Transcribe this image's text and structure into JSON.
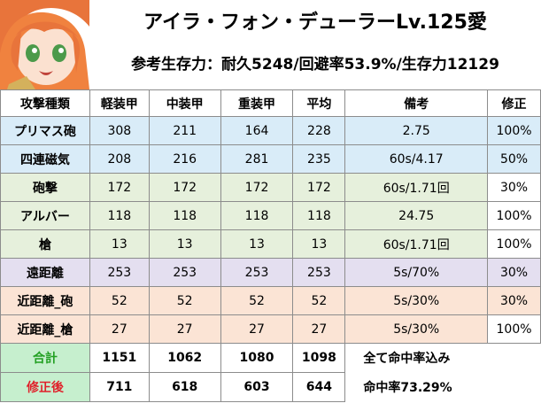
{
  "header": {
    "title": "アイラ・フォン・デューラーLv.125愛",
    "subtitle": "参考生存力：耐久5248/回避率53.9%/生存力12129"
  },
  "columns": [
    "攻撃種類",
    "軽装甲",
    "中装甲",
    "重装甲",
    "平均",
    "備考",
    "修正"
  ],
  "rows": [
    {
      "label": "プリマス砲",
      "light": "308",
      "medium": "211",
      "heavy": "164",
      "avg": "228",
      "note": "2.75",
      "mod": "100%",
      "color": "blue"
    },
    {
      "label": "四連磁気",
      "light": "208",
      "medium": "216",
      "heavy": "281",
      "avg": "235",
      "note": "60s/4.17",
      "mod": "50%",
      "color": "blue"
    },
    {
      "label": "砲撃",
      "light": "172",
      "medium": "172",
      "heavy": "172",
      "avg": "172",
      "note": "60s/1.71回",
      "mod": "30%",
      "color": "green"
    },
    {
      "label": "アルバー",
      "light": "118",
      "medium": "118",
      "heavy": "118",
      "avg": "118",
      "note": "24.75",
      "mod": "100%",
      "color": "green"
    },
    {
      "label": "槍",
      "light": "13",
      "medium": "13",
      "heavy": "13",
      "avg": "13",
      "note": "60s/1.71回",
      "mod": "100%",
      "color": "green"
    },
    {
      "label": "遠距離",
      "light": "253",
      "medium": "253",
      "heavy": "253",
      "avg": "253",
      "note": "5s/70%",
      "mod": "30%",
      "color": "purple"
    },
    {
      "label": "近距離_砲",
      "light": "52",
      "medium": "52",
      "heavy": "52",
      "avg": "52",
      "note": "5s/30%",
      "mod": "30%",
      "color": "peach"
    },
    {
      "label": "近距離_槍",
      "light": "27",
      "medium": "27",
      "heavy": "27",
      "avg": "27",
      "note": "5s/30%",
      "mod": "100%",
      "color": "peach"
    }
  ],
  "totals": {
    "sum": {
      "label": "合計",
      "light": "1151",
      "medium": "1062",
      "heavy": "1080",
      "avg": "1098",
      "note": "全て命中率込み"
    },
    "modified": {
      "label": "修正後",
      "light": "711",
      "medium": "618",
      "heavy": "603",
      "avg": "644",
      "note": "命中率73.29%"
    }
  },
  "colors": {
    "blue": "#d9ecf8",
    "green": "#e6f0dc",
    "purple": "#e4dff0",
    "peach": "#fbe4d5",
    "total_label_bg": "#c6efce",
    "sum_text": "#22a022",
    "modified_text": "#e0202a"
  },
  "avatar_icon": "character-portrait-icon"
}
